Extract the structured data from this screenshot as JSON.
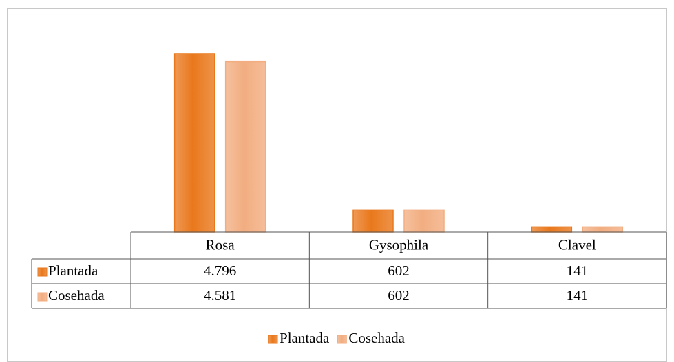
{
  "chart_data": {
    "type": "bar",
    "categories": [
      "Rosa",
      "Gysophila",
      "Clavel"
    ],
    "series": [
      {
        "name": "Plantada",
        "color": "#e9781c",
        "values": [
          4796,
          602,
          141
        ],
        "value_labels": [
          "4.796",
          "602",
          "141"
        ]
      },
      {
        "name": "Cosehada",
        "color": "#f2ad80",
        "values": [
          4581,
          602,
          141
        ],
        "value_labels": [
          "4.581",
          "602",
          "141"
        ]
      }
    ],
    "data_table": true,
    "legend": "bottom"
  }
}
